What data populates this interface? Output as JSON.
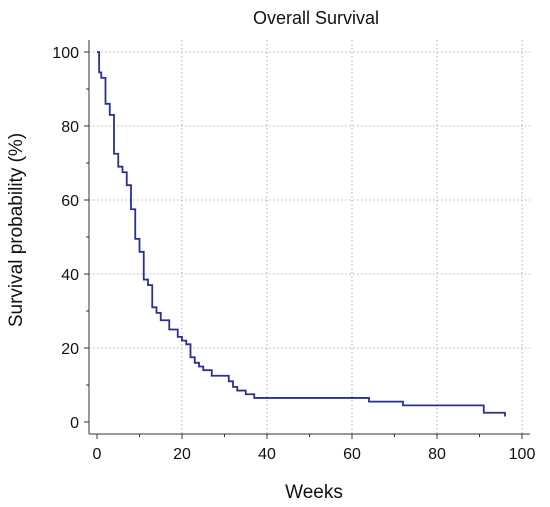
{
  "chart_data": {
    "type": "line",
    "title": "Overall Survival",
    "xlabel": "Weeks",
    "ylabel": "Survival probability (%)",
    "xlim": [
      0,
      100
    ],
    "ylim": [
      0,
      100
    ],
    "xticks": [
      "0",
      "20",
      "40",
      "60",
      "80",
      "100"
    ],
    "yticks": [
      "0",
      "20",
      "40",
      "60",
      "80",
      "100"
    ],
    "grid": true,
    "step": true,
    "series": [
      {
        "color": "#2b2f8f",
        "x": [
          0,
          0.5,
          1,
          2,
          3,
          4,
          5,
          6,
          7,
          8,
          9,
          10,
          11,
          12,
          13,
          14,
          15,
          17,
          19,
          20,
          21,
          22,
          23,
          24,
          25,
          27,
          31,
          32,
          33,
          35,
          37,
          64,
          72,
          84,
          91,
          96
        ],
        "y": [
          100,
          94.5,
          93,
          86,
          83,
          72.5,
          69,
          67.5,
          64,
          57.5,
          49.5,
          46,
          38.5,
          37,
          31,
          29.5,
          27.5,
          25,
          23,
          22,
          21,
          17.5,
          16,
          15,
          14,
          12.5,
          11,
          9.5,
          8.5,
          7.5,
          6.5,
          5.5,
          4.5,
          4.5,
          2.5,
          1.5
        ]
      }
    ]
  }
}
